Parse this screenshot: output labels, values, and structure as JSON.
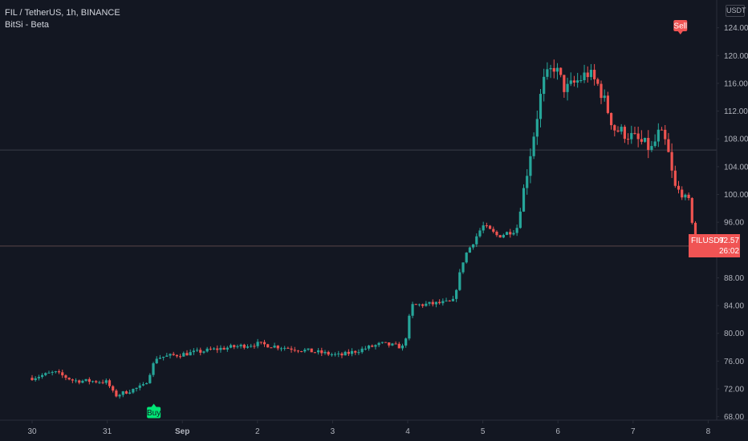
{
  "header": {
    "title": "FIL / TetherUS, 1h, BINANCE",
    "indicator": "BitSi - Beta"
  },
  "axis": {
    "unit": "USDT"
  },
  "last_price": {
    "symbol": "FILUSDT",
    "price": "92.57",
    "countdown": "26:02"
  },
  "signals": [
    {
      "label": "Buy",
      "color": "#00e676"
    },
    {
      "label": "Sell",
      "color": "#f05454"
    }
  ],
  "colors": {
    "background": "#131722",
    "up": "#26a69a",
    "down": "#ef5350",
    "text": "#b2b5be",
    "grid": "#2a2e39"
  },
  "chart_data": {
    "type": "candlestick",
    "x_ticks": [
      "30",
      "31",
      "Sep",
      "2",
      "3",
      "4",
      "5",
      "6",
      "7",
      "8"
    ],
    "y_ticks": [
      "68.00",
      "72.00",
      "76.00",
      "80.00",
      "84.00",
      "88.00",
      "96.00",
      "100.00",
      "104.00",
      "108.00",
      "112.00",
      "116.00",
      "120.00",
      "124.00"
    ],
    "ylim": [
      64.5,
      128
    ],
    "last_price": 92.57,
    "horizontal_level": 106.4,
    "series_anchors": [
      {
        "x": 0.0,
        "price": 73.6
      },
      {
        "x": 0.3,
        "price": 74.4
      },
      {
        "x": 0.55,
        "price": 73.2
      },
      {
        "x": 0.85,
        "price": 73.1
      },
      {
        "x": 1.0,
        "price": 73.0
      },
      {
        "x": 1.1,
        "price": 71.0
      },
      {
        "x": 1.5,
        "price": 72.5
      },
      {
        "x": 1.65,
        "price": 76.5
      },
      {
        "x": 2.0,
        "price": 77.0
      },
      {
        "x": 2.5,
        "price": 77.8
      },
      {
        "x": 3.0,
        "price": 78.5
      },
      {
        "x": 3.6,
        "price": 77.6
      },
      {
        "x": 4.1,
        "price": 76.8
      },
      {
        "x": 4.65,
        "price": 78.5
      },
      {
        "x": 4.95,
        "price": 78.0
      },
      {
        "x": 5.05,
        "price": 84.0
      },
      {
        "x": 5.6,
        "price": 84.5
      },
      {
        "x": 5.75,
        "price": 91.0
      },
      {
        "x": 6.0,
        "price": 95.5
      },
      {
        "x": 6.2,
        "price": 94.0
      },
      {
        "x": 6.45,
        "price": 95.0
      },
      {
        "x": 6.8,
        "price": 116.0
      },
      {
        "x": 6.95,
        "price": 118.5
      },
      {
        "x": 7.1,
        "price": 115.0
      },
      {
        "x": 7.4,
        "price": 117.5
      },
      {
        "x": 7.55,
        "price": 115.5
      },
      {
        "x": 7.75,
        "price": 109.5
      },
      {
        "x": 7.95,
        "price": 108.5
      },
      {
        "x": 8.25,
        "price": 106.5
      },
      {
        "x": 8.35,
        "price": 109.0
      },
      {
        "x": 8.45,
        "price": 107.0
      },
      {
        "x": 8.55,
        "price": 101.0
      },
      {
        "x": 8.75,
        "price": 99.0
      },
      {
        "x": 8.83,
        "price": 92.57
      }
    ],
    "buy_signal": {
      "x": 1.62,
      "price": 68.6,
      "label": "Buy"
    },
    "sell_signal": {
      "x": 8.63,
      "price": 124.3,
      "label": "Sell"
    }
  }
}
